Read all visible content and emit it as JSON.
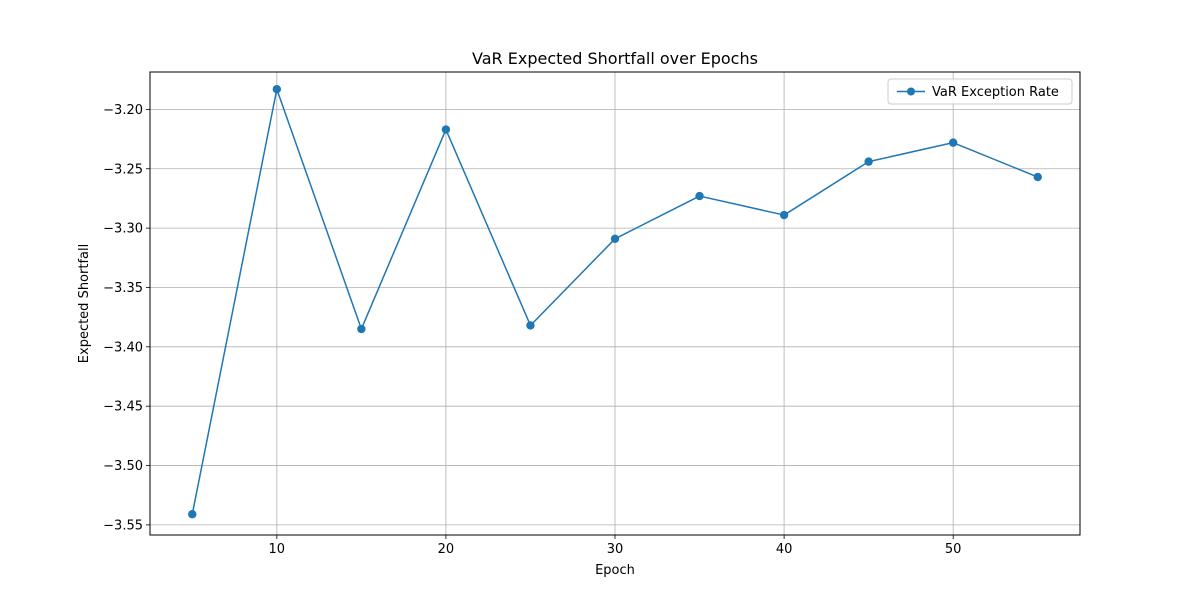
{
  "chart_data": {
    "type": "line",
    "title": "VaR Expected Shortfall over Epochs",
    "xlabel": "Epoch",
    "ylabel": "Expected Shortfall",
    "xlim": [
      2.5,
      57.5
    ],
    "ylim": [
      -3.5585,
      -3.1685
    ],
    "xticks": [
      10,
      20,
      30,
      40,
      50
    ],
    "xtick_labels": [
      "10",
      "20",
      "30",
      "40",
      "50"
    ],
    "yticks": [
      -3.55,
      -3.5,
      -3.45,
      -3.4,
      -3.35,
      -3.3,
      -3.25,
      -3.2
    ],
    "ytick_labels": [
      "−3.55",
      "−3.50",
      "−3.45",
      "−3.40",
      "−3.35",
      "−3.30",
      "−3.25",
      "−3.20"
    ],
    "grid": true,
    "legend_position": "top-right",
    "series": [
      {
        "name": "VaR Exception Rate",
        "color": "#1f77b4",
        "marker": "circle",
        "x": [
          5,
          10,
          15,
          20,
          25,
          30,
          35,
          40,
          45,
          50,
          55
        ],
        "y": [
          -3.541,
          -3.183,
          -3.385,
          -3.217,
          -3.382,
          -3.309,
          -3.273,
          -3.289,
          -3.244,
          -3.228,
          -3.257
        ]
      }
    ]
  }
}
